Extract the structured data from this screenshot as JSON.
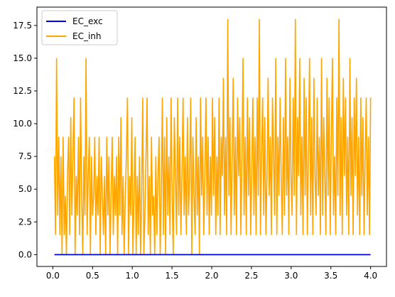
{
  "chart_data": {
    "type": "line",
    "xlim": [
      -0.2,
      4.2
    ],
    "ylim": [
      -0.9,
      18.9
    ],
    "xticks": [
      0.0,
      0.5,
      1.0,
      1.5,
      2.0,
      2.5,
      3.0,
      3.5,
      4.0
    ],
    "xtick_labels": [
      "0.0",
      "0.5",
      "1.0",
      "1.5",
      "2.0",
      "2.5",
      "3.0",
      "3.5",
      "4.0"
    ],
    "yticks": [
      0.0,
      2.5,
      5.0,
      7.5,
      10.0,
      12.5,
      15.0,
      17.5
    ],
    "ytick_labels": [
      "0.0",
      "2.5",
      "5.0",
      "7.5",
      "10.0",
      "12.5",
      "15.0",
      "17.5"
    ],
    "grid": false,
    "legend_position": "upper-left",
    "series": [
      {
        "name": "EC_exc",
        "color": "#0000ff",
        "x": [
          0.02,
          4.0
        ],
        "values": [
          0.0,
          0.0
        ]
      },
      {
        "name": "EC_inh",
        "color": "#ffa500",
        "x_start": 0.02,
        "x_end": 4.0,
        "values": [
          7.5,
          1.5,
          15.0,
          3.0,
          9.0,
          1.5,
          7.5,
          0.0,
          9.0,
          1.5,
          4.5,
          0.0,
          6.0,
          9.0,
          1.5,
          10.5,
          3.0,
          7.5,
          12.0,
          0.0,
          6.0,
          3.0,
          9.0,
          1.5,
          12.0,
          4.5,
          0.0,
          7.5,
          3.0,
          15.0,
          1.5,
          6.0,
          9.0,
          0.0,
          7.5,
          3.0,
          4.5,
          9.0,
          1.5,
          6.0,
          3.0,
          9.0,
          0.0,
          7.5,
          4.5,
          1.5,
          6.0,
          0.0,
          9.0,
          3.0,
          7.5,
          0.0,
          4.5,
          9.0,
          1.5,
          6.0,
          3.0,
          7.5,
          0.0,
          9.0,
          3.0,
          10.5,
          1.5,
          6.0,
          0.0,
          4.5,
          7.5,
          12.0,
          0.0,
          6.0,
          3.0,
          10.5,
          0.0,
          4.5,
          9.0,
          0.0,
          6.0,
          1.5,
          7.5,
          0.0,
          4.5,
          12.0,
          0.0,
          3.0,
          7.5,
          12.0,
          1.5,
          6.0,
          0.0,
          9.0,
          3.0,
          4.5,
          0.0,
          7.5,
          1.5,
          6.0,
          9.0,
          0.0,
          4.5,
          12.0,
          1.5,
          9.0,
          0.0,
          10.5,
          3.0,
          7.5,
          1.5,
          12.0,
          4.5,
          0.0,
          10.5,
          6.0,
          1.5,
          12.0,
          3.0,
          9.0,
          1.5,
          6.0,
          12.0,
          3.0,
          7.5,
          1.5,
          10.5,
          3.0,
          6.0,
          12.0,
          0.0,
          9.0,
          4.5,
          1.5,
          10.5,
          3.0,
          7.5,
          0.0,
          12.0,
          4.5,
          9.0,
          1.5,
          6.0,
          12.0,
          3.0,
          9.0,
          1.5,
          7.5,
          3.0,
          12.0,
          4.5,
          10.5,
          1.5,
          7.5,
          3.0,
          12.0,
          1.5,
          9.0,
          6.0,
          13.5,
          3.0,
          9.0,
          1.5,
          18.0,
          4.5,
          10.5,
          1.5,
          7.5,
          13.5,
          3.0,
          9.0,
          1.5,
          12.0,
          6.0,
          10.5,
          1.5,
          7.5,
          15.0,
          3.0,
          9.0,
          1.5,
          12.0,
          4.5,
          10.5,
          1.5,
          6.0,
          12.0,
          3.0,
          9.0,
          1.5,
          12.0,
          4.5,
          18.0,
          1.5,
          7.5,
          12.0,
          3.0,
          10.5,
          1.5,
          6.0,
          13.5,
          4.5,
          9.0,
          1.5,
          12.0,
          7.5,
          3.0,
          15.0,
          1.5,
          9.0,
          4.5,
          12.0,
          6.0,
          1.5,
          10.5,
          3.0,
          15.0,
          4.5,
          9.0,
          1.5,
          13.5,
          6.0,
          3.0,
          12.0,
          4.5,
          18.0,
          1.5,
          10.5,
          6.0,
          15.0,
          3.0,
          9.0,
          1.5,
          13.5,
          4.5,
          12.0,
          1.5,
          7.5,
          15.0,
          3.0,
          10.5,
          1.5,
          13.5,
          6.0,
          3.0,
          12.0,
          4.5,
          9.0,
          1.5,
          15.0,
          3.0,
          10.5,
          6.0,
          1.5,
          13.5,
          4.5,
          12.0,
          1.5,
          9.0,
          15.0,
          3.0,
          7.5,
          1.5,
          12.0,
          4.5,
          18.0,
          3.0,
          10.5,
          1.5,
          13.5,
          6.0,
          12.0,
          3.0,
          9.0,
          1.5,
          15.0,
          4.5,
          10.5,
          1.5,
          12.0,
          6.0,
          13.5,
          3.0,
          9.0,
          1.5,
          12.0,
          4.5,
          10.5,
          1.5,
          7.5,
          12.0,
          3.0,
          9.0,
          1.5,
          12.0
        ]
      }
    ]
  }
}
